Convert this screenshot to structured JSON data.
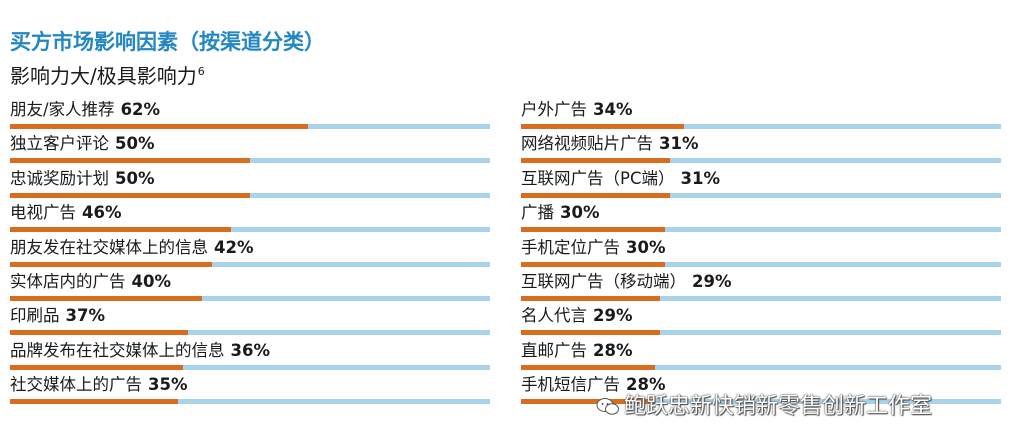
{
  "header": {
    "title": "买方市场影响因素（按渠道分类）",
    "subtitle": "影响力大/极具影响力",
    "subtitle_note": "6"
  },
  "chart_data": {
    "type": "bar",
    "title": "买方市场影响因素（按渠道分类）",
    "subtitle": "影响力大/极具影响力",
    "xlim": [
      0,
      100
    ],
    "unit": "%",
    "colors": {
      "value": "#d96d1f",
      "track": "#a9d3ec",
      "title": "#2287c2"
    },
    "left_column": [
      {
        "label": "朋友/家人推荐",
        "value": 62
      },
      {
        "label": "独立客户评论",
        "value": 50
      },
      {
        "label": "忠诚奖励计划",
        "value": 50
      },
      {
        "label": "电视广告",
        "value": 46
      },
      {
        "label": "朋友发在社交媒体上的信息",
        "value": 42
      },
      {
        "label": "实体店内的广告",
        "value": 40
      },
      {
        "label": "印刷品",
        "value": 37
      },
      {
        "label": "品牌发布在社交媒体上的信息",
        "value": 36
      },
      {
        "label": "社交媒体上的广告",
        "value": 35
      }
    ],
    "right_column": [
      {
        "label": "户外广告",
        "value": 34
      },
      {
        "label": "网络视频贴片广告",
        "value": 31
      },
      {
        "label": "互联网广告（PC端）",
        "value": 31
      },
      {
        "label": "广播",
        "value": 30
      },
      {
        "label": "手机定位广告",
        "value": 30
      },
      {
        "label": "互联网广告（移动端）",
        "value": 29
      },
      {
        "label": "名人代言",
        "value": 29
      },
      {
        "label": "直邮广告",
        "value": 28
      },
      {
        "label": "手机短信广告",
        "value": 28
      }
    ]
  },
  "watermark": {
    "text": "鲍跃忠新快销新零售创新工作室",
    "icon": "wechat-icon"
  }
}
